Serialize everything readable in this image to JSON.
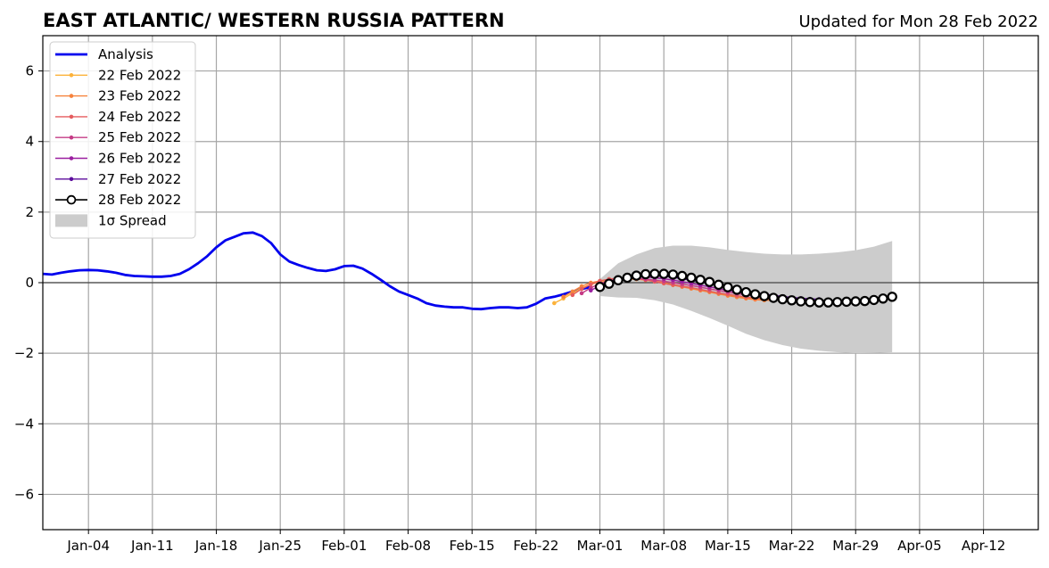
{
  "title": "EAST ATLANTIC/ WESTERN RUSSIA PATTERN",
  "subtitle": "Updated for Mon 28 Feb 2022",
  "chart_data": {
    "type": "line",
    "title": "EAST ATLANTIC/ WESTERN RUSSIA PATTERN",
    "subtitle": "Updated for Mon 28 Feb 2022",
    "xlabel": "",
    "ylabel": "",
    "xlim": [
      "2021-12-30",
      "2022-04-18"
    ],
    "ylim": [
      -7,
      7
    ],
    "x_tick_labels": [
      "Jan-04",
      "Jan-11",
      "Jan-18",
      "Jan-25",
      "Feb-01",
      "Feb-08",
      "Feb-15",
      "Feb-22",
      "Mar-01",
      "Mar-08",
      "Mar-15",
      "Mar-22",
      "Mar-29",
      "Apr-05",
      "Apr-12"
    ],
    "x_ticks": [
      "2022-01-04",
      "2022-01-11",
      "2022-01-18",
      "2022-01-25",
      "2022-02-01",
      "2022-02-08",
      "2022-02-15",
      "2022-02-22",
      "2022-03-01",
      "2022-03-08",
      "2022-03-15",
      "2022-03-22",
      "2022-03-29",
      "2022-04-05",
      "2022-04-12"
    ],
    "y_ticks": [
      -6,
      -4,
      -2,
      0,
      2,
      4,
      6
    ],
    "y_tick_labels": [
      "−6",
      "−4",
      "−2",
      "0",
      "2",
      "4",
      "6"
    ],
    "grid": true,
    "legend_position": "top-left",
    "legend": [
      "Analysis",
      "22 Feb 2022",
      "23 Feb 2022",
      "24 Feb 2022",
      "25 Feb 2022",
      "26 Feb 2022",
      "27 Feb 2022",
      "28 Feb 2022",
      "1σ Spread"
    ],
    "series": [
      {
        "name": "Analysis",
        "color": "#0000ee",
        "points": [
          [
            "2021-12-30",
            0.25
          ],
          [
            "2021-12-31",
            0.23
          ],
          [
            "2022-01-01",
            0.28
          ],
          [
            "2022-01-02",
            0.32
          ],
          [
            "2022-01-03",
            0.35
          ],
          [
            "2022-01-04",
            0.36
          ],
          [
            "2022-01-05",
            0.35
          ],
          [
            "2022-01-06",
            0.32
          ],
          [
            "2022-01-07",
            0.28
          ],
          [
            "2022-01-08",
            0.22
          ],
          [
            "2022-01-09",
            0.19
          ],
          [
            "2022-01-10",
            0.18
          ],
          [
            "2022-01-11",
            0.17
          ],
          [
            "2022-01-12",
            0.17
          ],
          [
            "2022-01-13",
            0.19
          ],
          [
            "2022-01-14",
            0.25
          ],
          [
            "2022-01-15",
            0.38
          ],
          [
            "2022-01-16",
            0.55
          ],
          [
            "2022-01-17",
            0.75
          ],
          [
            "2022-01-18",
            1.0
          ],
          [
            "2022-01-19",
            1.2
          ],
          [
            "2022-01-20",
            1.3
          ],
          [
            "2022-01-21",
            1.4
          ],
          [
            "2022-01-22",
            1.42
          ],
          [
            "2022-01-23",
            1.32
          ],
          [
            "2022-01-24",
            1.12
          ],
          [
            "2022-01-25",
            0.8
          ],
          [
            "2022-01-26",
            0.6
          ],
          [
            "2022-01-27",
            0.5
          ],
          [
            "2022-01-28",
            0.42
          ],
          [
            "2022-01-29",
            0.35
          ],
          [
            "2022-01-30",
            0.33
          ],
          [
            "2022-01-31",
            0.38
          ],
          [
            "2022-02-01",
            0.47
          ],
          [
            "2022-02-02",
            0.48
          ],
          [
            "2022-02-03",
            0.4
          ],
          [
            "2022-02-04",
            0.25
          ],
          [
            "2022-02-05",
            0.08
          ],
          [
            "2022-02-06",
            -0.1
          ],
          [
            "2022-02-07",
            -0.25
          ],
          [
            "2022-02-08",
            -0.35
          ],
          [
            "2022-02-09",
            -0.45
          ],
          [
            "2022-02-10",
            -0.58
          ],
          [
            "2022-02-11",
            -0.65
          ],
          [
            "2022-02-12",
            -0.68
          ],
          [
            "2022-02-13",
            -0.7
          ],
          [
            "2022-02-14",
            -0.7
          ],
          [
            "2022-02-15",
            -0.74
          ],
          [
            "2022-02-16",
            -0.75
          ],
          [
            "2022-02-17",
            -0.72
          ],
          [
            "2022-02-18",
            -0.7
          ],
          [
            "2022-02-19",
            -0.7
          ],
          [
            "2022-02-20",
            -0.72
          ],
          [
            "2022-02-21",
            -0.7
          ],
          [
            "2022-02-22",
            -0.6
          ],
          [
            "2022-02-23",
            -0.45
          ],
          [
            "2022-02-24",
            -0.4
          ],
          [
            "2022-02-25",
            -0.33
          ],
          [
            "2022-02-26",
            -0.25
          ],
          [
            "2022-02-27",
            -0.18
          ],
          [
            "2022-02-28",
            -0.12
          ]
        ]
      },
      {
        "name": "22 Feb 2022",
        "color": "#fcb23a",
        "points": [
          [
            "2022-02-24",
            -0.58
          ],
          [
            "2022-02-25",
            -0.45
          ],
          [
            "2022-02-26",
            -0.3
          ],
          [
            "2022-02-27",
            -0.15
          ],
          [
            "2022-02-28",
            -0.05
          ],
          [
            "2022-03-01",
            0.02
          ],
          [
            "2022-03-02",
            0.06
          ],
          [
            "2022-03-03",
            0.08
          ],
          [
            "2022-03-04",
            0.1
          ],
          [
            "2022-03-05",
            0.1
          ],
          [
            "2022-03-06",
            0.08
          ],
          [
            "2022-03-07",
            0.05
          ],
          [
            "2022-03-08",
            0.0
          ],
          [
            "2022-03-09",
            -0.05
          ],
          [
            "2022-03-10",
            -0.1
          ],
          [
            "2022-03-11",
            -0.15
          ],
          [
            "2022-03-12",
            -0.2
          ],
          [
            "2022-03-13",
            -0.25
          ],
          [
            "2022-03-14",
            -0.3
          ],
          [
            "2022-03-15",
            -0.35
          ],
          [
            "2022-03-16",
            -0.4
          ],
          [
            "2022-03-17",
            -0.42
          ],
          [
            "2022-03-18",
            -0.45
          ],
          [
            "2022-03-19",
            -0.48
          ]
        ]
      },
      {
        "name": "23 Feb 2022",
        "color": "#f6823c",
        "points": [
          [
            "2022-02-25",
            -0.4
          ],
          [
            "2022-02-26",
            -0.25
          ],
          [
            "2022-02-27",
            -0.1
          ],
          [
            "2022-02-28",
            0.0
          ],
          [
            "2022-03-01",
            0.05
          ],
          [
            "2022-03-02",
            0.1
          ],
          [
            "2022-03-03",
            0.12
          ],
          [
            "2022-03-04",
            0.12
          ],
          [
            "2022-03-05",
            0.1
          ],
          [
            "2022-03-06",
            0.07
          ],
          [
            "2022-03-07",
            0.03
          ],
          [
            "2022-03-08",
            -0.02
          ],
          [
            "2022-03-09",
            -0.07
          ],
          [
            "2022-03-10",
            -0.12
          ],
          [
            "2022-03-11",
            -0.17
          ],
          [
            "2022-03-12",
            -0.22
          ],
          [
            "2022-03-13",
            -0.27
          ],
          [
            "2022-03-14",
            -0.32
          ],
          [
            "2022-03-15",
            -0.37
          ],
          [
            "2022-03-16",
            -0.41
          ],
          [
            "2022-03-17",
            -0.45
          ],
          [
            "2022-03-18",
            -0.48
          ],
          [
            "2022-03-19",
            -0.5
          ],
          [
            "2022-03-20",
            -0.5
          ]
        ]
      },
      {
        "name": "24 Feb 2022",
        "color": "#e55c5e",
        "points": [
          [
            "2022-02-26",
            -0.35
          ],
          [
            "2022-02-27",
            -0.18
          ],
          [
            "2022-02-28",
            -0.05
          ],
          [
            "2022-03-01",
            0.05
          ],
          [
            "2022-03-02",
            0.1
          ],
          [
            "2022-03-03",
            0.13
          ],
          [
            "2022-03-04",
            0.13
          ],
          [
            "2022-03-05",
            0.11
          ],
          [
            "2022-03-06",
            0.08
          ],
          [
            "2022-03-07",
            0.03
          ],
          [
            "2022-03-08",
            -0.02
          ],
          [
            "2022-03-09",
            -0.06
          ],
          [
            "2022-03-10",
            -0.1
          ],
          [
            "2022-03-11",
            -0.14
          ],
          [
            "2022-03-12",
            -0.19
          ],
          [
            "2022-03-13",
            -0.24
          ],
          [
            "2022-03-14",
            -0.29
          ],
          [
            "2022-03-15",
            -0.33
          ],
          [
            "2022-03-16",
            -0.37
          ],
          [
            "2022-03-17",
            -0.41
          ],
          [
            "2022-03-18",
            -0.44
          ],
          [
            "2022-03-19",
            -0.46
          ],
          [
            "2022-03-20",
            -0.47
          ],
          [
            "2022-03-21",
            -0.47
          ]
        ]
      },
      {
        "name": "25 Feb 2022",
        "color": "#c53b86",
        "points": [
          [
            "2022-02-27",
            -0.3
          ],
          [
            "2022-02-28",
            -0.15
          ],
          [
            "2022-03-01",
            -0.02
          ],
          [
            "2022-03-02",
            0.06
          ],
          [
            "2022-03-03",
            0.1
          ],
          [
            "2022-03-04",
            0.12
          ],
          [
            "2022-03-05",
            0.12
          ],
          [
            "2022-03-06",
            0.1
          ],
          [
            "2022-03-07",
            0.07
          ],
          [
            "2022-03-08",
            0.04
          ],
          [
            "2022-03-09",
            0.0
          ],
          [
            "2022-03-10",
            -0.04
          ],
          [
            "2022-03-11",
            -0.08
          ],
          [
            "2022-03-12",
            -0.13
          ],
          [
            "2022-03-13",
            -0.18
          ],
          [
            "2022-03-14",
            -0.22
          ],
          [
            "2022-03-15",
            -0.27
          ],
          [
            "2022-03-16",
            -0.31
          ],
          [
            "2022-03-17",
            -0.35
          ],
          [
            "2022-03-18",
            -0.38
          ],
          [
            "2022-03-19",
            -0.41
          ],
          [
            "2022-03-20",
            -0.43
          ],
          [
            "2022-03-21",
            -0.45
          ],
          [
            "2022-03-22",
            -0.46
          ]
        ]
      },
      {
        "name": "26 Feb 2022",
        "color": "#9b1fa0",
        "points": [
          [
            "2022-02-28",
            -0.22
          ],
          [
            "2022-03-01",
            -0.08
          ],
          [
            "2022-03-02",
            0.03
          ],
          [
            "2022-03-03",
            0.1
          ],
          [
            "2022-03-04",
            0.14
          ],
          [
            "2022-03-05",
            0.16
          ],
          [
            "2022-03-06",
            0.16
          ],
          [
            "2022-03-07",
            0.14
          ],
          [
            "2022-03-08",
            0.11
          ],
          [
            "2022-03-09",
            0.07
          ],
          [
            "2022-03-10",
            0.03
          ],
          [
            "2022-03-11",
            -0.02
          ],
          [
            "2022-03-12",
            -0.07
          ],
          [
            "2022-03-13",
            -0.12
          ],
          [
            "2022-03-14",
            -0.17
          ],
          [
            "2022-03-15",
            -0.22
          ],
          [
            "2022-03-16",
            -0.27
          ],
          [
            "2022-03-17",
            -0.31
          ],
          [
            "2022-03-18",
            -0.35
          ],
          [
            "2022-03-19",
            -0.38
          ],
          [
            "2022-03-20",
            -0.41
          ],
          [
            "2022-03-21",
            -0.43
          ],
          [
            "2022-03-22",
            -0.45
          ],
          [
            "2022-03-23",
            -0.46
          ]
        ]
      },
      {
        "name": "27 Feb 2022",
        "color": "#5c0c9c",
        "points": [
          [
            "2022-03-01",
            -0.15
          ],
          [
            "2022-03-02",
            -0.02
          ],
          [
            "2022-03-03",
            0.08
          ],
          [
            "2022-03-04",
            0.14
          ],
          [
            "2022-03-05",
            0.18
          ],
          [
            "2022-03-06",
            0.2
          ],
          [
            "2022-03-07",
            0.2
          ],
          [
            "2022-03-08",
            0.18
          ],
          [
            "2022-03-09",
            0.15
          ],
          [
            "2022-03-10",
            0.11
          ],
          [
            "2022-03-11",
            0.07
          ],
          [
            "2022-03-12",
            0.02
          ],
          [
            "2022-03-13",
            -0.03
          ],
          [
            "2022-03-14",
            -0.08
          ],
          [
            "2022-03-15",
            -0.13
          ],
          [
            "2022-03-16",
            -0.18
          ],
          [
            "2022-03-17",
            -0.23
          ],
          [
            "2022-03-18",
            -0.28
          ],
          [
            "2022-03-19",
            -0.32
          ],
          [
            "2022-03-20",
            -0.36
          ],
          [
            "2022-03-21",
            -0.39
          ],
          [
            "2022-03-22",
            -0.42
          ],
          [
            "2022-03-23",
            -0.44
          ],
          [
            "2022-03-24",
            -0.46
          ],
          [
            "2022-03-25",
            -0.47
          ]
        ]
      },
      {
        "name": "28 Feb 2022",
        "color": "#000000",
        "points": [
          [
            "2022-03-01",
            -0.12
          ],
          [
            "2022-03-02",
            -0.03
          ],
          [
            "2022-03-03",
            0.07
          ],
          [
            "2022-03-04",
            0.14
          ],
          [
            "2022-03-05",
            0.2
          ],
          [
            "2022-03-06",
            0.24
          ],
          [
            "2022-03-07",
            0.25
          ],
          [
            "2022-03-08",
            0.25
          ],
          [
            "2022-03-09",
            0.23
          ],
          [
            "2022-03-10",
            0.19
          ],
          [
            "2022-03-11",
            0.14
          ],
          [
            "2022-03-12",
            0.08
          ],
          [
            "2022-03-13",
            0.02
          ],
          [
            "2022-03-14",
            -0.06
          ],
          [
            "2022-03-15",
            -0.13
          ],
          [
            "2022-03-16",
            -0.2
          ],
          [
            "2022-03-17",
            -0.27
          ],
          [
            "2022-03-18",
            -0.33
          ],
          [
            "2022-03-19",
            -0.38
          ],
          [
            "2022-03-20",
            -0.43
          ],
          [
            "2022-03-21",
            -0.47
          ],
          [
            "2022-03-22",
            -0.5
          ],
          [
            "2022-03-23",
            -0.53
          ],
          [
            "2022-03-24",
            -0.55
          ],
          [
            "2022-03-25",
            -0.56
          ],
          [
            "2022-03-26",
            -0.56
          ],
          [
            "2022-03-27",
            -0.55
          ],
          [
            "2022-03-28",
            -0.54
          ],
          [
            "2022-03-29",
            -0.53
          ],
          [
            "2022-03-30",
            -0.52
          ],
          [
            "2022-03-31",
            -0.49
          ],
          [
            "2022-04-01",
            -0.45
          ],
          [
            "2022-04-02",
            -0.4
          ]
        ]
      }
    ],
    "spread": {
      "name": "1σ Spread",
      "color": "#cccccc",
      "dates": [
        "2022-03-01",
        "2022-03-03",
        "2022-03-05",
        "2022-03-07",
        "2022-03-09",
        "2022-03-11",
        "2022-03-13",
        "2022-03-15",
        "2022-03-17",
        "2022-03-19",
        "2022-03-21",
        "2022-03-23",
        "2022-03-25",
        "2022-03-27",
        "2022-03-29",
        "2022-03-31",
        "2022-04-02"
      ],
      "upper": [
        0.1,
        0.55,
        0.8,
        0.98,
        1.05,
        1.05,
        1.0,
        0.93,
        0.87,
        0.82,
        0.8,
        0.8,
        0.82,
        0.86,
        0.92,
        1.02,
        1.18
      ],
      "lower": [
        -0.38,
        -0.42,
        -0.43,
        -0.5,
        -0.62,
        -0.8,
        -1.0,
        -1.22,
        -1.45,
        -1.63,
        -1.77,
        -1.87,
        -1.93,
        -1.97,
        -2.0,
        -1.99,
        -1.97
      ]
    }
  }
}
